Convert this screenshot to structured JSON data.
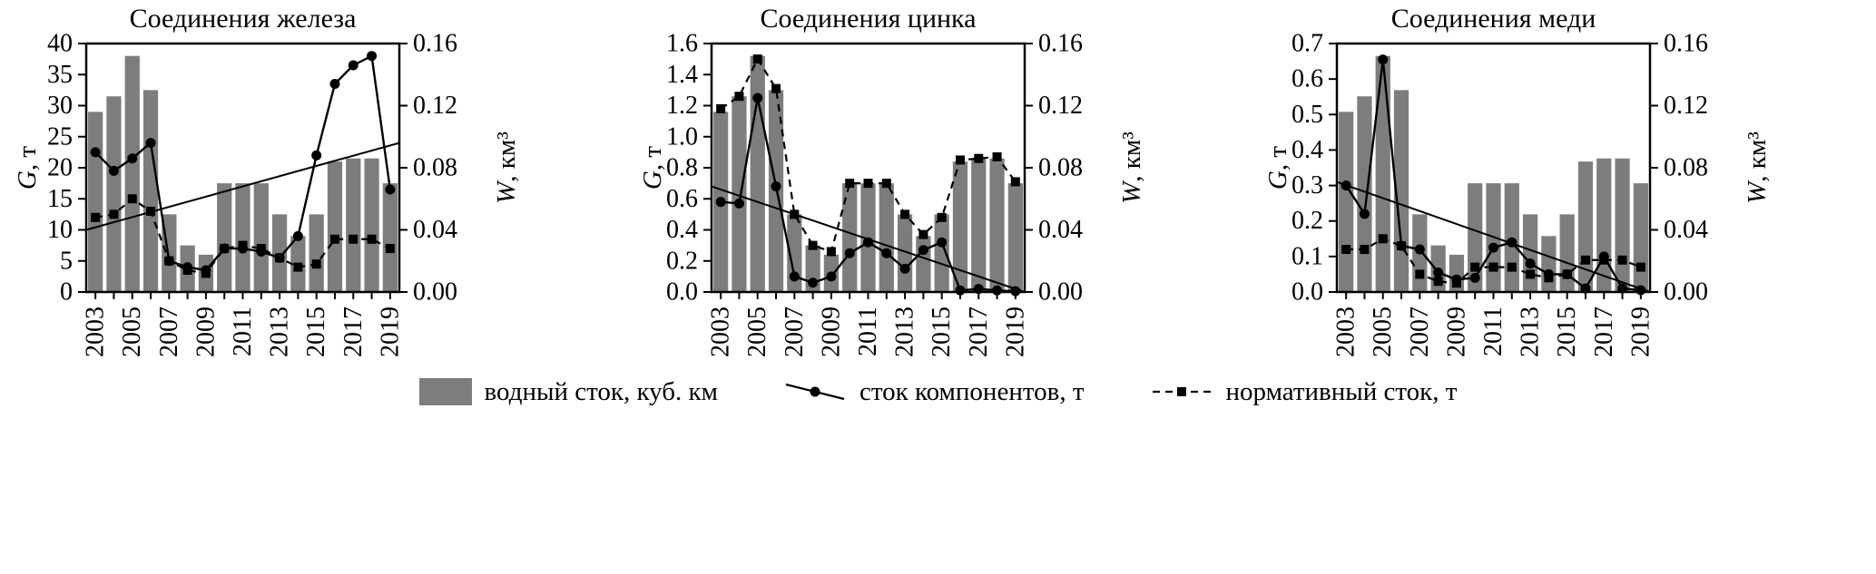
{
  "figure": {
    "background": "#ffffff",
    "bar_color": "#7d7d7d",
    "line_color": "#000000",
    "legend": [
      {
        "symbol": "bar-swatch",
        "label": "водный сток, куб. км"
      },
      {
        "symbol": "line-with-circle",
        "label": "сток компонентов, т"
      },
      {
        "symbol": "dashed-line-with-square",
        "label": "нормативный сток, т"
      }
    ]
  },
  "chart_data": [
    {
      "type": "bar+line",
      "title": "Соединения железа",
      "x": [
        2003,
        2004,
        2005,
        2006,
        2007,
        2008,
        2009,
        2010,
        2011,
        2012,
        2013,
        2014,
        2015,
        2016,
        2017,
        2018,
        2019
      ],
      "xtick_labels": [
        "2003",
        "2005",
        "2007",
        "2009",
        "2011",
        "2013",
        "2015",
        "2017",
        "2019"
      ],
      "left_axis": {
        "label": "G, т",
        "lim": [
          0,
          40
        ],
        "ticks": [
          0,
          5,
          10,
          15,
          20,
          25,
          30,
          35,
          40
        ],
        "tick_labels": [
          "0",
          "5",
          "10",
          "15",
          "20",
          "25",
          "30",
          "35",
          "40"
        ]
      },
      "right_axis": {
        "label": "W, км³",
        "lim": [
          0,
          0.16
        ],
        "ticks": [
          0,
          0.04,
          0.08,
          0.12,
          0.16
        ],
        "tick_labels": [
          "0.00",
          "0.04",
          "0.08",
          "0.12",
          "0.16"
        ]
      },
      "series": [
        {
          "name": "водный сток, куб. км",
          "type": "bar",
          "axis": "right",
          "values": [
            0.116,
            0.126,
            0.152,
            0.13,
            0.05,
            0.03,
            0.024,
            0.07,
            0.07,
            0.07,
            0.05,
            0.036,
            0.05,
            0.084,
            0.086,
            0.086,
            0.07
          ]
        },
        {
          "name": "сток компонентов, т",
          "type": "line",
          "marker": "circle",
          "axis": "left",
          "values": [
            22.5,
            19.5,
            21.5,
            24,
            5,
            4,
            3.5,
            7,
            7,
            6.5,
            5.5,
            9,
            22,
            33.5,
            36.5,
            38,
            16.5
          ]
        },
        {
          "name": "нормативный сток, т",
          "type": "dashed-line",
          "marker": "square",
          "axis": "left",
          "values": [
            12,
            12.5,
            15,
            13,
            5,
            3.5,
            3,
            7,
            7.5,
            7,
            5.5,
            4,
            4.5,
            8.5,
            8.5,
            8.5,
            7
          ]
        },
        {
          "name": "линия тренда",
          "type": "trend",
          "axis": "left",
          "endpoints": [
            10,
            24
          ]
        }
      ]
    },
    {
      "type": "bar+line",
      "title": "Соединения цинка",
      "x": [
        2003,
        2004,
        2005,
        2006,
        2007,
        2008,
        2009,
        2010,
        2011,
        2012,
        2013,
        2014,
        2015,
        2016,
        2017,
        2018,
        2019
      ],
      "xtick_labels": [
        "2003",
        "2005",
        "2007",
        "2009",
        "2011",
        "2013",
        "2015",
        "2017",
        "2019"
      ],
      "left_axis": {
        "label": "G, т",
        "lim": [
          0,
          1.6
        ],
        "ticks": [
          0,
          0.2,
          0.4,
          0.6,
          0.8,
          1.0,
          1.2,
          1.4,
          1.6
        ],
        "tick_labels": [
          "0.0",
          "0.2",
          "0.4",
          "0.6",
          "0.8",
          "1.0",
          "1.2",
          "1.4",
          "1.6"
        ]
      },
      "right_axis": {
        "label": "W, км³",
        "lim": [
          0,
          0.16
        ],
        "ticks": [
          0,
          0.04,
          0.08,
          0.12,
          0.16
        ],
        "tick_labels": [
          "0.00",
          "0.04",
          "0.08",
          "0.12",
          "0.16"
        ]
      },
      "series": [
        {
          "name": "водный сток, куб. км",
          "type": "bar",
          "axis": "right",
          "values": [
            0.116,
            0.126,
            0.152,
            0.13,
            0.05,
            0.03,
            0.024,
            0.07,
            0.07,
            0.07,
            0.05,
            0.036,
            0.05,
            0.084,
            0.086,
            0.086,
            0.07
          ]
        },
        {
          "name": "сток компонентов, т",
          "type": "line",
          "marker": "circle",
          "axis": "left",
          "values": [
            0.58,
            0.57,
            1.25,
            0.68,
            0.1,
            0.06,
            0.1,
            0.25,
            0.32,
            0.25,
            0.15,
            0.27,
            0.32,
            0.01,
            0.02,
            0.01,
            0.005
          ]
        },
        {
          "name": "нормативный сток, т",
          "type": "dashed-line",
          "marker": "square",
          "axis": "left",
          "values": [
            1.18,
            1.26,
            1.5,
            1.31,
            0.5,
            0.3,
            0.26,
            0.7,
            0.7,
            0.7,
            0.5,
            0.37,
            0.48,
            0.85,
            0.86,
            0.87,
            0.71
          ]
        },
        {
          "name": "линия тренда",
          "type": "trend",
          "axis": "left",
          "endpoints": [
            0.68,
            0.0
          ]
        }
      ]
    },
    {
      "type": "bar+line",
      "title": "Соединения меди",
      "x": [
        2003,
        2004,
        2005,
        2006,
        2007,
        2008,
        2009,
        2010,
        2011,
        2012,
        2013,
        2014,
        2015,
        2016,
        2017,
        2018,
        2019
      ],
      "xtick_labels": [
        "2003",
        "2005",
        "2007",
        "2009",
        "2011",
        "2013",
        "2015",
        "2017",
        "2019"
      ],
      "left_axis": {
        "label": "G, т",
        "lim": [
          0,
          0.7
        ],
        "ticks": [
          0,
          0.1,
          0.2,
          0.3,
          0.4,
          0.5,
          0.6,
          0.7
        ],
        "tick_labels": [
          "0.0",
          "0.1",
          "0.2",
          "0.3",
          "0.4",
          "0.5",
          "0.6",
          "0.7"
        ]
      },
      "right_axis": {
        "label": "W, км³",
        "lim": [
          0,
          0.16
        ],
        "ticks": [
          0,
          0.04,
          0.08,
          0.12,
          0.16
        ],
        "tick_labels": [
          "0.00",
          "0.04",
          "0.08",
          "0.12",
          "0.16"
        ]
      },
      "series": [
        {
          "name": "водный сток, куб. км",
          "type": "bar",
          "axis": "right",
          "values": [
            0.116,
            0.126,
            0.152,
            0.13,
            0.05,
            0.03,
            0.024,
            0.07,
            0.07,
            0.07,
            0.05,
            0.036,
            0.05,
            0.084,
            0.086,
            0.086,
            0.07
          ]
        },
        {
          "name": "сток компонентов, т",
          "type": "line",
          "marker": "circle",
          "axis": "left",
          "values": [
            0.3,
            0.22,
            0.655,
            0.13,
            0.12,
            0.055,
            0.035,
            0.04,
            0.125,
            0.14,
            0.08,
            0.05,
            0.05,
            0.01,
            0.1,
            0.01,
            0.005
          ]
        },
        {
          "name": "нормативный сток, т",
          "type": "dashed-line",
          "marker": "square",
          "axis": "left",
          "values": [
            0.12,
            0.12,
            0.15,
            0.13,
            0.05,
            0.03,
            0.025,
            0.07,
            0.07,
            0.07,
            0.05,
            0.04,
            0.05,
            0.09,
            0.09,
            0.09,
            0.07
          ]
        },
        {
          "name": "линия тренда",
          "type": "trend",
          "axis": "left",
          "endpoints": [
            0.31,
            0.0
          ]
        }
      ]
    }
  ]
}
